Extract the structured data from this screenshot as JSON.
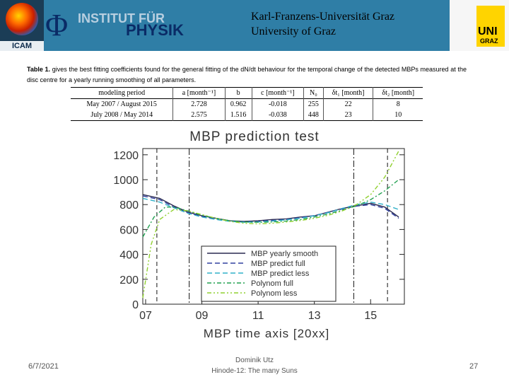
{
  "header": {
    "icam_label": "ICAM",
    "phi": "Φ",
    "institute_line1": "INSTITUT FÜR",
    "institute_line2": "PHYSIK",
    "university_de": "Karl-Franzens-Universität Graz",
    "university_en": "University of Graz",
    "uni_logo_line1": "UNI",
    "uni_logo_line2": "GRAZ",
    "colors": {
      "header_bg": "#2f7ea6",
      "logo_yellow": "#ffd400"
    }
  },
  "table": {
    "caption_label": "Table 1.",
    "caption_text": "gives the best fitting coefficients found for the general fitting of the dN/dt behaviour for the temporal change of the detected MBPs measured at the disc centre for a yearly running smoothing of all parameters.",
    "headers": [
      "modeling period",
      "a [month⁻¹]",
      "b",
      "c [month⁻¹]",
      "N₀",
      "δt₁ [month]",
      "δt₂ [month]"
    ],
    "rows": [
      [
        "May 2007 / August 2015",
        "2.728",
        "0.962",
        "-0.018",
        "255",
        "22",
        "8"
      ],
      [
        "July 2008 / May 2014",
        "2.575",
        "1.516",
        "-0.038",
        "448",
        "23",
        "10"
      ]
    ]
  },
  "chart_data": {
    "type": "line",
    "title": "MBP prediction test",
    "xlabel": "MBP time axis [20xx]",
    "ylabel": "",
    "xlim": [
      2006.9,
      2016.2
    ],
    "ylim": [
      0,
      1250
    ],
    "x_tick_values": [
      2007,
      2009,
      2011,
      2013,
      2015
    ],
    "x_tick_labels": [
      "07",
      "09",
      "11",
      "13",
      "15"
    ],
    "y_ticks": [
      0,
      200,
      400,
      600,
      800,
      1000,
      1200
    ],
    "vertical_markers": [
      {
        "x": 2007.4,
        "style": "dashed"
      },
      {
        "x": 2008.55,
        "style": "dashdot"
      },
      {
        "x": 2014.4,
        "style": "dashdot"
      },
      {
        "x": 2015.6,
        "style": "dashed"
      }
    ],
    "legend_position": "lower-center",
    "series": [
      {
        "name": "MBP yearly smooth",
        "color": "#2a2a50",
        "dash": "",
        "x": [
          2006.9,
          2007.5,
          2008,
          2008.5,
          2009,
          2009.5,
          2010,
          2010.5,
          2011,
          2011.5,
          2012,
          2012.5,
          2013,
          2013.5,
          2014,
          2014.5,
          2015,
          2015.5,
          2016
        ],
        "y": [
          880,
          850,
          790,
          740,
          710,
          690,
          670,
          665,
          670,
          680,
          685,
          700,
          710,
          740,
          770,
          790,
          810,
          780,
          700
        ]
      },
      {
        "name": "MBP predict full",
        "color": "#3040a0",
        "dash": "7,4",
        "x": [
          2006.9,
          2007.5,
          2008,
          2008.5,
          2009,
          2009.5,
          2010,
          2010.5,
          2011,
          2011.5,
          2012,
          2012.5,
          2013,
          2013.5,
          2014,
          2014.5,
          2015,
          2015.5,
          2016
        ],
        "y": [
          870,
          840,
          780,
          735,
          705,
          685,
          668,
          662,
          665,
          672,
          680,
          695,
          712,
          738,
          765,
          788,
          800,
          770,
          690
        ]
      },
      {
        "name": "MBP predict less",
        "color": "#30b0c8",
        "dash": "7,4",
        "x": [
          2006.9,
          2007.5,
          2008,
          2008.5,
          2009,
          2009.5,
          2010,
          2010.5,
          2011,
          2011.5,
          2012,
          2012.5,
          2013,
          2013.5,
          2014,
          2014.5,
          2015,
          2015.5,
          2016
        ],
        "y": [
          850,
          820,
          775,
          730,
          700,
          680,
          665,
          658,
          660,
          668,
          678,
          690,
          710,
          735,
          770,
          800,
          820,
          800,
          760
        ]
      },
      {
        "name": "Polynom full",
        "color": "#20a050",
        "dash": "6,3,2,3",
        "x": [
          2006.9,
          2007.3,
          2007.7,
          2008,
          2008.5,
          2009,
          2009.5,
          2010,
          2010.5,
          2011,
          2011.5,
          2012,
          2012.5,
          2013,
          2013.5,
          2014,
          2014.5,
          2015,
          2015.5,
          2016
        ],
        "y": [
          540,
          700,
          780,
          780,
          750,
          715,
          690,
          670,
          660,
          658,
          660,
          668,
          680,
          700,
          725,
          755,
          790,
          840,
          910,
          1000
        ]
      },
      {
        "name": "Polynom less",
        "color": "#90d030",
        "dash": "6,3,2,3,2,3",
        "x": [
          2006.9,
          2007.2,
          2007.5,
          2008,
          2008.5,
          2009,
          2009.5,
          2010,
          2010.5,
          2011,
          2011.5,
          2012,
          2012.5,
          2013,
          2013.5,
          2014,
          2014.5,
          2015,
          2015.5,
          2016
        ],
        "y": [
          50,
          480,
          680,
          760,
          750,
          720,
          690,
          665,
          650,
          645,
          650,
          660,
          672,
          690,
          715,
          750,
          800,
          880,
          1020,
          1230
        ]
      }
    ]
  },
  "footer": {
    "date": "6/7/2021",
    "author": "Dominik Utz",
    "event": "Hinode-12: The many Suns",
    "page": "27"
  }
}
